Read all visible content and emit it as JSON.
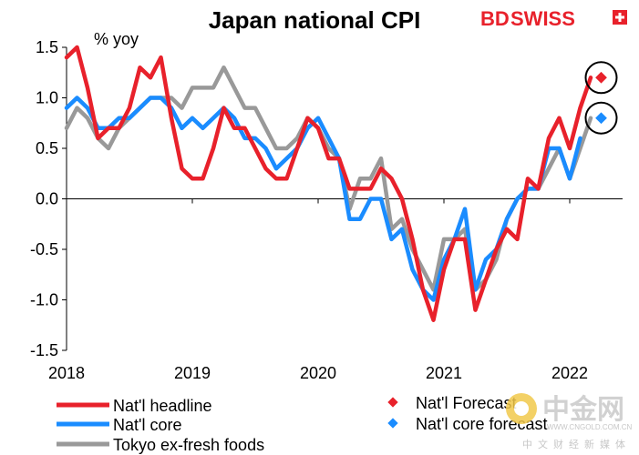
{
  "chart_data": {
    "type": "line",
    "title": "Japan national CPI",
    "ylabel": "% yoy",
    "xlabel": "",
    "ylim": [
      -1.5,
      1.5
    ],
    "yticks": [
      "1.5",
      "1.0",
      "0.5",
      "0.0",
      "-0.5",
      "-1.0",
      "-1.5"
    ],
    "ytick_values": [
      1.5,
      1.0,
      0.5,
      0.0,
      -0.5,
      -1.0,
      -1.5
    ],
    "xticks": [
      "2018",
      "2019",
      "2020",
      "2021",
      "2022"
    ],
    "xtick_values": [
      2018,
      2019,
      2020,
      2021,
      2022
    ],
    "xlim": [
      2018,
      2022.42
    ],
    "legend_position": "bottom",
    "series": [
      {
        "name": "Nat'l headline",
        "color": "#e8212b",
        "x": [
          2018.0,
          2018.083,
          2018.167,
          2018.25,
          2018.333,
          2018.417,
          2018.5,
          2018.583,
          2018.667,
          2018.75,
          2018.833,
          2018.917,
          2019.0,
          2019.083,
          2019.167,
          2019.25,
          2019.333,
          2019.417,
          2019.5,
          2019.583,
          2019.667,
          2019.75,
          2019.833,
          2019.917,
          2020.0,
          2020.083,
          2020.167,
          2020.25,
          2020.333,
          2020.417,
          2020.5,
          2020.583,
          2020.667,
          2020.75,
          2020.833,
          2020.917,
          2021.0,
          2021.083,
          2021.167,
          2021.25,
          2021.333,
          2021.417,
          2021.5,
          2021.583,
          2021.667,
          2021.75,
          2021.833,
          2021.917,
          2022.0,
          2022.083,
          2022.167
        ],
        "values": [
          1.4,
          1.5,
          1.1,
          0.6,
          0.7,
          0.7,
          0.9,
          1.3,
          1.2,
          1.4,
          0.8,
          0.3,
          0.2,
          0.2,
          0.5,
          0.9,
          0.7,
          0.7,
          0.5,
          0.3,
          0.2,
          0.2,
          0.5,
          0.8,
          0.7,
          0.4,
          0.4,
          0.1,
          0.1,
          0.1,
          0.3,
          0.2,
          0.0,
          -0.4,
          -0.9,
          -1.2,
          -0.7,
          -0.4,
          -0.4,
          -1.1,
          -0.8,
          -0.5,
          -0.3,
          -0.4,
          0.2,
          0.1,
          0.6,
          0.8,
          0.5,
          0.9,
          1.2
        ]
      },
      {
        "name": "Nat'l core",
        "color": "#1a8cff",
        "x": [
          2018.0,
          2018.083,
          2018.167,
          2018.25,
          2018.333,
          2018.417,
          2018.5,
          2018.583,
          2018.667,
          2018.75,
          2018.833,
          2018.917,
          2019.0,
          2019.083,
          2019.167,
          2019.25,
          2019.333,
          2019.417,
          2019.5,
          2019.583,
          2019.667,
          2019.75,
          2019.833,
          2019.917,
          2020.0,
          2020.083,
          2020.167,
          2020.25,
          2020.333,
          2020.417,
          2020.5,
          2020.583,
          2020.667,
          2020.75,
          2020.833,
          2020.917,
          2021.0,
          2021.083,
          2021.167,
          2021.25,
          2021.333,
          2021.417,
          2021.5,
          2021.583,
          2021.667,
          2021.75,
          2021.833,
          2021.917,
          2022.0,
          2022.083
        ],
        "values": [
          0.9,
          1.0,
          0.9,
          0.7,
          0.7,
          0.8,
          0.8,
          0.9,
          1.0,
          1.0,
          0.9,
          0.7,
          0.8,
          0.7,
          0.8,
          0.9,
          0.8,
          0.6,
          0.6,
          0.5,
          0.3,
          0.4,
          0.5,
          0.7,
          0.8,
          0.6,
          0.4,
          -0.2,
          -0.2,
          0.0,
          0.0,
          -0.4,
          -0.3,
          -0.7,
          -0.9,
          -1.0,
          -0.6,
          -0.4,
          -0.1,
          -0.9,
          -0.6,
          -0.5,
          -0.2,
          0.0,
          0.1,
          0.1,
          0.5,
          0.5,
          0.2,
          0.6
        ]
      },
      {
        "name": "Tokyo ex-fresh foods",
        "color": "#999999",
        "x": [
          2018.0,
          2018.083,
          2018.167,
          2018.25,
          2018.333,
          2018.417,
          2018.5,
          2018.583,
          2018.667,
          2018.75,
          2018.833,
          2018.917,
          2019.0,
          2019.083,
          2019.167,
          2019.25,
          2019.333,
          2019.417,
          2019.5,
          2019.583,
          2019.667,
          2019.75,
          2019.833,
          2019.917,
          2020.0,
          2020.083,
          2020.167,
          2020.25,
          2020.333,
          2020.417,
          2020.5,
          2020.583,
          2020.667,
          2020.75,
          2020.833,
          2020.917,
          2021.0,
          2021.083,
          2021.167,
          2021.25,
          2021.333,
          2021.417,
          2021.5,
          2021.583,
          2021.667,
          2021.75,
          2021.833,
          2021.917,
          2022.0,
          2022.083,
          2022.167
        ],
        "values": [
          0.7,
          0.9,
          0.8,
          0.6,
          0.5,
          0.7,
          0.8,
          0.9,
          1.0,
          1.0,
          1.0,
          0.9,
          1.1,
          1.1,
          1.1,
          1.3,
          1.1,
          0.9,
          0.9,
          0.7,
          0.5,
          0.5,
          0.6,
          0.8,
          0.7,
          0.5,
          0.4,
          -0.1,
          0.2,
          0.2,
          0.4,
          -0.3,
          -0.2,
          -0.5,
          -0.7,
          -0.9,
          -0.4,
          -0.4,
          -0.3,
          -0.9,
          -0.8,
          -0.6,
          -0.2,
          0.0,
          0.1,
          0.1,
          0.3,
          0.5,
          0.2,
          0.5,
          0.8
        ]
      }
    ],
    "forecasts": [
      {
        "name": "Nat'l Forecast",
        "color": "#e8212b",
        "x": 2022.25,
        "value": 1.2
      },
      {
        "name": "Nat'l core forecast",
        "color": "#1a8cff",
        "x": 2022.25,
        "value": 0.8
      }
    ]
  },
  "brand": {
    "name_part1": "BD",
    "name_part2": "SWISS",
    "color": "#e8212b"
  },
  "watermark": {
    "logo_text": "中金网",
    "url_text": "WWW.CNGOLD.COM.CN",
    "subtitle": "中文财经新媒体"
  }
}
